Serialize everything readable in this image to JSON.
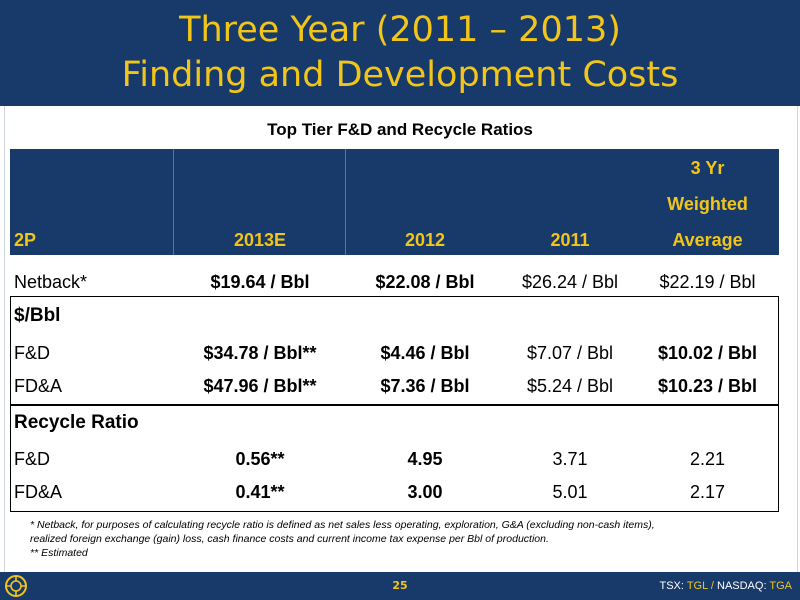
{
  "slide": {
    "title_line1": "Three Year (2011 – 2013)",
    "title_line2": "Finding and Development Costs",
    "table_title": "Top Tier F&D and Recycle Ratios",
    "page_number": "25",
    "ticker": {
      "tsx_label": "TSX:",
      "tsx_symbol": "TGL",
      "separator": "/",
      "nasdaq_label": "NASDAQ:",
      "nasdaq_symbol": "TGA"
    },
    "colors": {
      "navy": "#173a6b",
      "gold": "#f2c51a"
    }
  },
  "table": {
    "header": {
      "label": "2P",
      "col_2013": "2013E",
      "col_2012": "2012",
      "col_2011": "2011",
      "avg_line1": "3 Yr",
      "avg_line2": "Weighted",
      "avg_line3": "Average"
    },
    "netback": {
      "label": "Netback*",
      "v2013": "$19.64 / Bbl",
      "v2012": "$22.08 / Bbl",
      "v2011": "$26.24 / Bbl",
      "avg": "$22.19 / Bbl"
    },
    "per_bbl_section": "$/Bbl",
    "per_bbl_rows": [
      {
        "label": "F&D",
        "v2013": "$34.78 / Bbl**",
        "v2012": "$4.46 / Bbl",
        "v2011": "$7.07 / Bbl",
        "avg": "$10.02 / Bbl"
      },
      {
        "label": "FD&A",
        "v2013": "$47.96 / Bbl**",
        "v2012": "$7.36 / Bbl",
        "v2011": "$5.24 / Bbl",
        "avg": "$10.23 / Bbl"
      }
    ],
    "recycle_section": "Recycle Ratio",
    "recycle_rows": [
      {
        "label": "F&D",
        "v2013": "0.56**",
        "v2012": "4.95",
        "v2011": "3.71",
        "avg": "2.21"
      },
      {
        "label": "FD&A",
        "v2013": "0.41**",
        "v2012": "3.00",
        "v2011": "5.01",
        "avg": "2.17"
      }
    ]
  },
  "footnotes": {
    "line1": "* Netback, for purposes of calculating recycle ratio is defined as net sales less operating, exploration, G&A (excluding non-cash items),",
    "line2": "realized foreign exchange (gain) loss, cash finance costs and current income tax expense per Bbl of production.",
    "line3": "** Estimated"
  }
}
